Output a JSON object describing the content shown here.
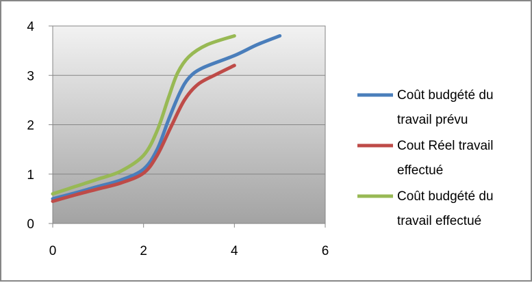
{
  "chart_data": {
    "type": "scatter",
    "mode": "smooth-lines",
    "title": "",
    "xlabel": "",
    "ylabel": "",
    "xlim": [
      0,
      6
    ],
    "ylim": [
      0,
      4
    ],
    "x_ticks": [
      "0",
      "2",
      "4",
      "6"
    ],
    "y_ticks": [
      "0",
      "1",
      "2",
      "3",
      "4"
    ],
    "grid": "horizontal-major",
    "plot_background": "gradient-gray",
    "legend_position": "right",
    "series": [
      {
        "name": "Coût budgété du travail prévu",
        "legend_lines": [
          "Coût budgété du",
          "travail prévu"
        ],
        "color": "#4a7ebb",
        "x": [
          0,
          0.5,
          1,
          1.5,
          2,
          2.3,
          2.55,
          2.8,
          3.0,
          3.3,
          4,
          4.5,
          5
        ],
        "y": [
          0.5,
          0.62,
          0.75,
          0.88,
          1.1,
          1.5,
          2.1,
          2.65,
          2.95,
          3.15,
          3.4,
          3.62,
          3.8
        ]
      },
      {
        "name": "Cout Réel travail effectué",
        "legend_lines": [
          "Cout Réel travail",
          "effectué"
        ],
        "color": "#be4b48",
        "x": [
          0,
          0.5,
          1,
          1.5,
          2,
          2.3,
          2.6,
          2.9,
          3.2,
          3.6,
          4
        ],
        "y": [
          0.45,
          0.58,
          0.7,
          0.82,
          1.02,
          1.38,
          1.95,
          2.5,
          2.82,
          3.02,
          3.2
        ]
      },
      {
        "name": "Coût budgété du travail effectué",
        "legend_lines": [
          "Coût budgété du",
          "travail effectué"
        ],
        "color": "#98b954",
        "x": [
          0,
          0.5,
          1,
          1.5,
          2,
          2.3,
          2.55,
          2.75,
          3.0,
          3.4,
          4
        ],
        "y": [
          0.6,
          0.75,
          0.9,
          1.06,
          1.38,
          1.88,
          2.55,
          3.05,
          3.38,
          3.62,
          3.8
        ]
      }
    ]
  }
}
